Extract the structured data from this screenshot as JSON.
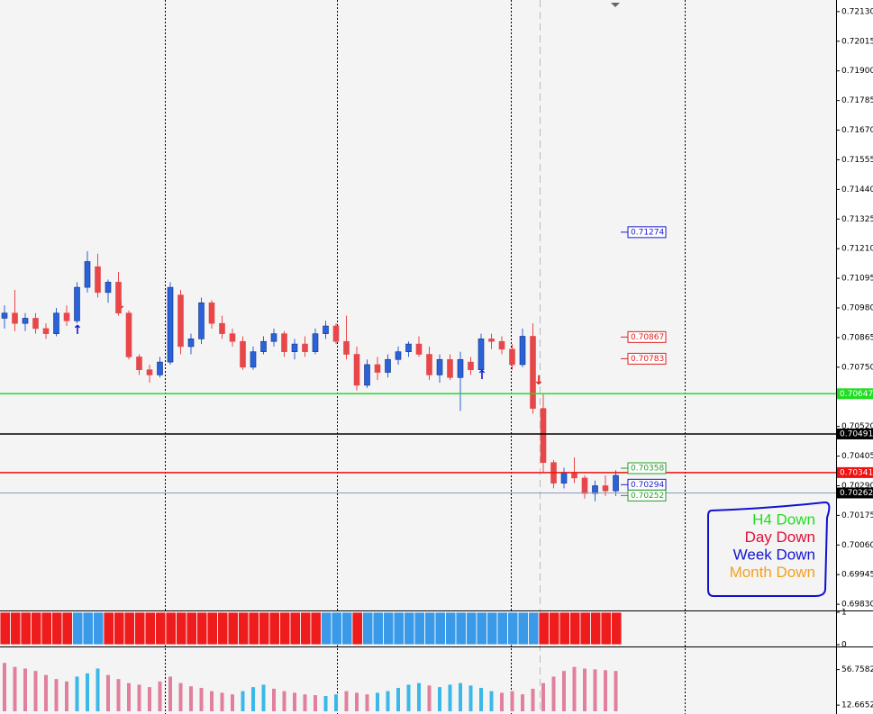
{
  "chart_data": {
    "type": "candlestick",
    "ylim": [
      0.69806,
      0.72175
    ],
    "yticks": [
      {
        "value": 0.7213,
        "label": "0.72130"
      },
      {
        "value": 0.72015,
        "label": "0.72015"
      },
      {
        "value": 0.719,
        "label": "0.71900"
      },
      {
        "value": 0.71785,
        "label": "0.71785"
      },
      {
        "value": 0.7167,
        "label": "0.71670"
      },
      {
        "value": 0.71555,
        "label": "0.71555"
      },
      {
        "value": 0.7144,
        "label": "0.71440"
      },
      {
        "value": 0.71325,
        "label": "0.71325"
      },
      {
        "value": 0.7121,
        "label": "0.71210"
      },
      {
        "value": 0.71095,
        "label": "0.71095"
      },
      {
        "value": 0.7098,
        "label": "0.70980"
      },
      {
        "value": 0.70865,
        "label": "0.70865"
      },
      {
        "value": 0.7075,
        "label": "0.70750"
      },
      {
        "value": 0.7052,
        "label": "0.70520"
      },
      {
        "value": 0.70405,
        "label": "0.70405"
      },
      {
        "value": 0.7029,
        "label": "0.70290"
      },
      {
        "value": 0.70175,
        "label": "0.70175"
      },
      {
        "value": 0.7006,
        "label": "0.70060"
      },
      {
        "value": 0.69945,
        "label": "0.69945"
      },
      {
        "value": 0.6983,
        "label": "0.69830"
      }
    ],
    "up_color": "#2a62d8",
    "down_color": "#e8474a",
    "candles": [
      [
        0.7094,
        0.7099,
        0.709,
        0.7096
      ],
      [
        0.7096,
        0.7105,
        0.7089,
        0.7092
      ],
      [
        0.7092,
        0.7096,
        0.7089,
        0.7094
      ],
      [
        0.7094,
        0.7096,
        0.7088,
        0.709
      ],
      [
        0.709,
        0.7092,
        0.7086,
        0.7088
      ],
      [
        0.7088,
        0.7098,
        0.7087,
        0.7096
      ],
      [
        0.7096,
        0.7099,
        0.7091,
        0.7093
      ],
      [
        0.7093,
        0.7108,
        0.7092,
        0.7106
      ],
      [
        0.7106,
        0.712,
        0.7104,
        0.7116
      ],
      [
        0.7114,
        0.7119,
        0.7102,
        0.7104
      ],
      [
        0.7104,
        0.7109,
        0.71,
        0.7108
      ],
      [
        0.7108,
        0.7112,
        0.7095,
        0.7096
      ],
      [
        0.7096,
        0.7097,
        0.7078,
        0.7079
      ],
      [
        0.7079,
        0.708,
        0.7072,
        0.7074
      ],
      [
        0.7074,
        0.7076,
        0.7069,
        0.7072
      ],
      [
        0.7072,
        0.7079,
        0.7071,
        0.7077
      ],
      [
        0.7077,
        0.7108,
        0.7076,
        0.7106
      ],
      [
        0.7103,
        0.7105,
        0.708,
        0.7083
      ],
      [
        0.7083,
        0.7088,
        0.708,
        0.7086
      ],
      [
        0.7086,
        0.7102,
        0.7084,
        0.71
      ],
      [
        0.71,
        0.7101,
        0.709,
        0.7092
      ],
      [
        0.7092,
        0.7095,
        0.7086,
        0.7088
      ],
      [
        0.7088,
        0.709,
        0.7083,
        0.7085
      ],
      [
        0.7085,
        0.7087,
        0.7074,
        0.7075
      ],
      [
        0.7075,
        0.7083,
        0.7074,
        0.7081
      ],
      [
        0.7081,
        0.7087,
        0.708,
        0.7085
      ],
      [
        0.7085,
        0.709,
        0.7083,
        0.7088
      ],
      [
        0.7088,
        0.7089,
        0.7079,
        0.7081
      ],
      [
        0.7081,
        0.7086,
        0.7078,
        0.7084
      ],
      [
        0.7084,
        0.7087,
        0.7079,
        0.7081
      ],
      [
        0.7081,
        0.709,
        0.708,
        0.7088
      ],
      [
        0.7088,
        0.7093,
        0.7086,
        0.7091
      ],
      [
        0.7091,
        0.7092,
        0.7084,
        0.7085
      ],
      [
        0.7085,
        0.7095,
        0.7078,
        0.708
      ],
      [
        0.708,
        0.7083,
        0.7066,
        0.7068
      ],
      [
        0.7068,
        0.7078,
        0.7067,
        0.7076
      ],
      [
        0.7076,
        0.7079,
        0.707,
        0.7073
      ],
      [
        0.7073,
        0.708,
        0.7071,
        0.7078
      ],
      [
        0.7078,
        0.7083,
        0.7076,
        0.7081
      ],
      [
        0.7081,
        0.7085,
        0.7079,
        0.7084
      ],
      [
        0.7084,
        0.7087,
        0.7079,
        0.708
      ],
      [
        0.708,
        0.7083,
        0.707,
        0.7072
      ],
      [
        0.7072,
        0.708,
        0.7069,
        0.7078
      ],
      [
        0.7078,
        0.708,
        0.707,
        0.7071
      ],
      [
        0.7071,
        0.7081,
        0.7058,
        0.7078
      ],
      [
        0.7077,
        0.7079,
        0.7072,
        0.7074
      ],
      [
        0.7074,
        0.7088,
        0.7073,
        0.7086
      ],
      [
        0.7086,
        0.7088,
        0.7082,
        0.7085
      ],
      [
        0.7085,
        0.7087,
        0.708,
        0.7082
      ],
      [
        0.7082,
        0.7084,
        0.7074,
        0.7076
      ],
      [
        0.7076,
        0.709,
        0.7075,
        0.7087
      ],
      [
        0.7087,
        0.7092,
        0.7057,
        0.7059
      ],
      [
        0.7059,
        0.7065,
        0.7034,
        0.7038
      ],
      [
        0.7038,
        0.7039,
        0.7028,
        0.703
      ],
      [
        0.703,
        0.7036,
        0.7028,
        0.7034
      ],
      [
        0.7034,
        0.704,
        0.703,
        0.7032
      ],
      [
        0.7032,
        0.7033,
        0.7024,
        0.7026
      ],
      [
        0.7026,
        0.7031,
        0.7023,
        0.7029
      ],
      [
        0.7029,
        0.7033,
        0.7025,
        0.7027
      ],
      [
        0.7027,
        0.7035,
        0.7025,
        0.7033
      ]
    ],
    "hlines": [
      {
        "value": 0.70647,
        "color": "#22dd22",
        "text": "#ffffff"
      },
      {
        "value": 0.70491,
        "color": "#000000",
        "text": "#ffffff"
      },
      {
        "value": 0.70341,
        "color": "#ee1111",
        "text": "#ffffff"
      },
      {
        "value": 0.70262,
        "color": "#8899bb",
        "box": "#000000",
        "text": "#ffffff"
      }
    ],
    "levels": [
      {
        "value": 0.71274,
        "color": "#1a1ad0"
      },
      {
        "value": 0.70867,
        "color": "#e02020"
      },
      {
        "value": 0.70783,
        "color": "#e02020"
      },
      {
        "value": 0.70358,
        "color": "#2a9a2a"
      },
      {
        "value": 0.70294,
        "color": "#1a1ad0"
      },
      {
        "value": 0.70252,
        "color": "#2a9a2a"
      }
    ],
    "legend": [
      {
        "text": "H4 Down",
        "color": "#22dd22"
      },
      {
        "text": "Day Down",
        "color": "#e0103a"
      },
      {
        "text": "Week Down",
        "color": "#1414d0"
      },
      {
        "text": "Month Down",
        "color": "#f5a020"
      }
    ],
    "panels": [
      {
        "type": "bar",
        "ylim": [
          0,
          1
        ],
        "yticks": [
          1,
          0
        ],
        "values": [
          1,
          1,
          1,
          1,
          1,
          1,
          1,
          1,
          1,
          1,
          1,
          1,
          1,
          1,
          1,
          1,
          1,
          1,
          1,
          1,
          1,
          1,
          1,
          1,
          1,
          1,
          1,
          1,
          1,
          1,
          1,
          1,
          1,
          1,
          1,
          1,
          1,
          1,
          1,
          1,
          1,
          1,
          1,
          1,
          1,
          1,
          1,
          1,
          1,
          1,
          1,
          1,
          1,
          1,
          1,
          1,
          1,
          1,
          1,
          1
        ],
        "colors": [
          "#ee1c1c",
          "#ee1c1c",
          "#ee1c1c",
          "#ee1c1c",
          "#ee1c1c",
          "#ee1c1c",
          "#ee1c1c",
          "#3a9ae8",
          "#3a9ae8",
          "#3a9ae8",
          "#ee1c1c",
          "#ee1c1c",
          "#ee1c1c",
          "#ee1c1c",
          "#ee1c1c",
          "#ee1c1c",
          "#ee1c1c",
          "#ee1c1c",
          "#ee1c1c",
          "#ee1c1c",
          "#ee1c1c",
          "#ee1c1c",
          "#ee1c1c",
          "#ee1c1c",
          "#ee1c1c",
          "#ee1c1c",
          "#ee1c1c",
          "#ee1c1c",
          "#ee1c1c",
          "#ee1c1c",
          "#ee1c1c",
          "#3a9ae8",
          "#3a9ae8",
          "#3a9ae8",
          "#ee1c1c",
          "#3a9ae8",
          "#3a9ae8",
          "#3a9ae8",
          "#3a9ae8",
          "#3a9ae8",
          "#3a9ae8",
          "#3a9ae8",
          "#3a9ae8",
          "#3a9ae8",
          "#3a9ae8",
          "#3a9ae8",
          "#3a9ae8",
          "#3a9ae8",
          "#3a9ae8",
          "#3a9ae8",
          "#3a9ae8",
          "#3a9ae8",
          "#ee1c1c",
          "#ee1c1c",
          "#ee1c1c",
          "#ee1c1c",
          "#ee1c1c",
          "#ee1c1c",
          "#ee1c1c",
          "#ee1c1c"
        ]
      },
      {
        "type": "bar",
        "ylim": [
          5,
          82
        ],
        "yticks": [
          56.7582,
          12.6652
        ],
        "values": [
          65,
          60,
          58,
          55,
          50,
          45,
          42,
          48,
          52,
          58,
          50,
          45,
          40,
          38,
          35,
          42,
          48,
          40,
          36,
          34,
          30,
          28,
          26,
          30,
          35,
          38,
          33,
          30,
          28,
          26,
          25,
          24,
          26,
          30,
          28,
          26,
          28,
          30,
          34,
          38,
          40,
          37,
          35,
          38,
          40,
          37,
          34,
          30,
          28,
          30,
          26,
          33,
          40,
          48,
          55,
          60,
          58,
          57,
          56,
          55
        ],
        "colors": [
          "#e0809c",
          "#e0809c",
          "#e0809c",
          "#e0809c",
          "#e0809c",
          "#e0809c",
          "#e0809c",
          "#3cb8e8",
          "#3cb8e8",
          "#3cb8e8",
          "#e0809c",
          "#e0809c",
          "#e0809c",
          "#e0809c",
          "#e0809c",
          "#e0809c",
          "#e0809c",
          "#e0809c",
          "#e0809c",
          "#e0809c",
          "#e0809c",
          "#e0809c",
          "#e0809c",
          "#3cb8e8",
          "#3cb8e8",
          "#3cb8e8",
          "#e0809c",
          "#e0809c",
          "#e0809c",
          "#e0809c",
          "#e0809c",
          "#3cb8e8",
          "#3cb8e8",
          "#e0809c",
          "#e0809c",
          "#e0809c",
          "#3cb8e8",
          "#3cb8e8",
          "#3cb8e8",
          "#3cb8e8",
          "#3cb8e8",
          "#e0809c",
          "#3cb8e8",
          "#3cb8e8",
          "#3cb8e8",
          "#3cb8e8",
          "#3cb8e8",
          "#3cb8e8",
          "#e0809c",
          "#e0809c",
          "#e0809c",
          "#e0809c",
          "#e0809c",
          "#e0809c",
          "#e0809c",
          "#e0809c",
          "#e0809c",
          "#e0809c",
          "#e0809c",
          "#e0809c"
        ]
      }
    ]
  }
}
